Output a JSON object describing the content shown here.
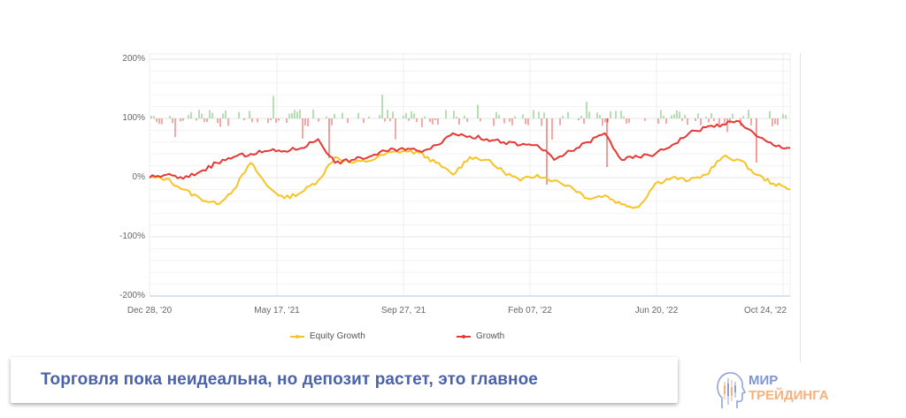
{
  "chart_data": {
    "type": "line",
    "title": "",
    "xlabel": "",
    "ylabel": "",
    "ylim": [
      -200,
      200
    ],
    "y_ticks": [
      "200%",
      "100%",
      "0%",
      "-100%",
      "-200%"
    ],
    "x_ticks": [
      "Dec 28, '20",
      "May 17, '21",
      "Sep 27, '21",
      "Feb 07, '22",
      "Jun 20, '22",
      "Oct 24, '22"
    ],
    "grid": true,
    "legend_position": "bottom",
    "series": [
      {
        "name": "Equity Growth",
        "color": "#f7c325",
        "x": [
          "Dec 28, '20",
          "Jan 18, '21",
          "Feb 08, '21",
          "Mar 01, '21",
          "Mar 22, '21",
          "Apr 05, '21",
          "Apr 19, '21",
          "May 03, '21",
          "May 17, '21",
          "Jun 07, '21",
          "Jun 28, '21",
          "Jul 12, '21",
          "Jul 26, '21",
          "Aug 09, '21",
          "Aug 23, '21",
          "Sep 13, '21",
          "Sep 27, '21",
          "Oct 18, '21",
          "Nov 08, '21",
          "Nov 29, '21",
          "Dec 20, '21",
          "Jan 10, '22",
          "Jan 24, '22",
          "Feb 07, '22",
          "Feb 28, '22",
          "Mar 21, '22",
          "Apr 11, '22",
          "May 02, '22",
          "May 23, '22",
          "Jun 06, '22",
          "Jun 20, '22",
          "Jul 11, '22",
          "Aug 01, '22",
          "Aug 22, '22",
          "Sep 12, '22",
          "Oct 03, '22",
          "Oct 17, '22",
          "Oct 24, '22",
          "Nov 07, '22"
        ],
        "values": [
          0,
          -2,
          -20,
          -35,
          -45,
          -20,
          25,
          -15,
          -35,
          -25,
          -5,
          35,
          25,
          28,
          40,
          45,
          42,
          25,
          5,
          35,
          30,
          10,
          -5,
          5,
          -5,
          -15,
          -35,
          -30,
          -45,
          -50,
          -10,
          0,
          -5,
          5,
          35,
          30,
          5,
          -10,
          -20
        ]
      },
      {
        "name": "Growth",
        "color": "#e53935",
        "x": [
          "Dec 28, '20",
          "Jan 18, '21",
          "Feb 08, '21",
          "Mar 01, '21",
          "Mar 22, '21",
          "Apr 05, '21",
          "Apr 19, '21",
          "May 03, '21",
          "May 17, '21",
          "Jun 07, '21",
          "Jun 28, '21",
          "Jul 12, '21",
          "Jul 26, '21",
          "Aug 09, '21",
          "Aug 23, '21",
          "Sep 13, '21",
          "Sep 27, '21",
          "Oct 18, '21",
          "Nov 08, '21",
          "Nov 29, '21",
          "Dec 20, '21",
          "Jan 10, '22",
          "Jan 24, '22",
          "Feb 07, '22",
          "Feb 28, '22",
          "Mar 21, '22",
          "Apr 11, '22",
          "May 02, '22",
          "May 23, '22",
          "Jun 06, '22",
          "Jun 20, '22",
          "Jul 11, '22",
          "Aug 01, '22",
          "Aug 22, '22",
          "Sep 12, '22",
          "Oct 03, '22",
          "Oct 17, '22",
          "Oct 24, '22",
          "Nov 07, '22"
        ],
        "values": [
          0,
          5,
          -2,
          10,
          25,
          35,
          40,
          45,
          45,
          50,
          65,
          25,
          30,
          35,
          45,
          50,
          45,
          55,
          75,
          70,
          65,
          60,
          55,
          55,
          30,
          45,
          60,
          75,
          30,
          35,
          40,
          55,
          75,
          85,
          90,
          95,
          70,
          55,
          50
        ]
      }
    ],
    "daily_bars": {
      "baseline": 100,
      "positive_color": "#6cbf6a",
      "negative_color": "#e53935",
      "note": "daily gain/loss bars plotted around the 100% line"
    }
  },
  "legend": {
    "items": [
      {
        "label": "Equity Growth",
        "color": "#f7c325"
      },
      {
        "label": "Growth",
        "color": "#e53935"
      }
    ]
  },
  "caption": {
    "text": "Торговля пока неидеальна, но депозит растет, это главное"
  },
  "logo": {
    "line1": "МИР",
    "line2": "ТРЕЙДИНГА"
  }
}
